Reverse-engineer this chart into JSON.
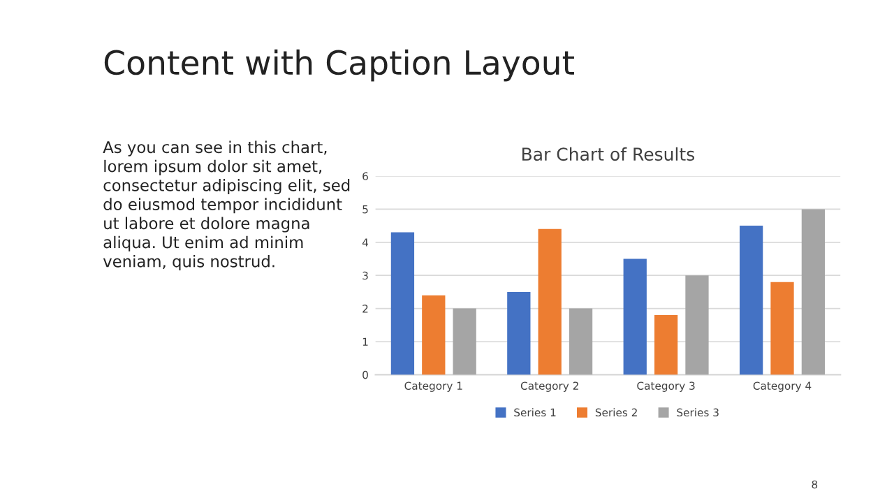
{
  "chart_data": {
    "type": "bar",
    "title": "Bar Chart of Results",
    "categories": [
      "Category 1",
      "Category 2",
      "Category 3",
      "Category 4"
    ],
    "series": [
      {
        "name": "Series 1",
        "color": "#4472c4",
        "values": [
          4.3,
          2.5,
          3.5,
          4.5
        ]
      },
      {
        "name": "Series 2",
        "color": "#ed7d31",
        "values": [
          2.4,
          4.4,
          1.8,
          2.8
        ]
      },
      {
        "name": "Series 3",
        "color": "#a5a5a5",
        "values": [
          2,
          2,
          3,
          5
        ]
      }
    ],
    "ylim": [
      0,
      6
    ],
    "yticks": [
      0,
      1,
      2,
      3,
      4,
      5,
      6
    ],
    "grid": "y",
    "legend": "bottom",
    "annotations": [
      "Content with Caption Layout",
      "As you can see in this chart,\nlorem ipsum dolor sit amet,\nconsectetur adipiscing elit, sed\ndo eiusmod tempor incididunt\nut labore et dolore magna\naliqua. Ut enim ad minim\nveniam, quis nostrud.",
      "8"
    ]
  }
}
